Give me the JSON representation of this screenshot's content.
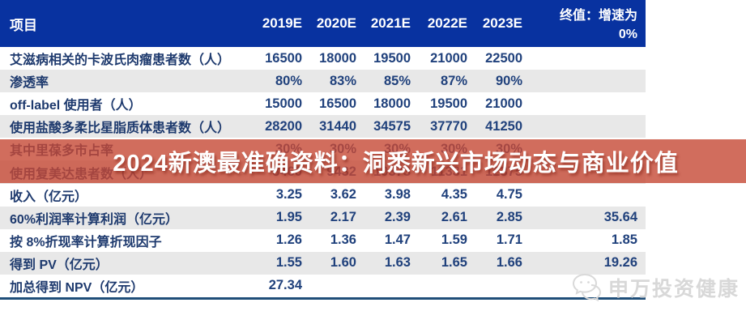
{
  "table": {
    "header": {
      "project": "项目",
      "years": [
        "2019E",
        "2020E",
        "2021E",
        "2022E",
        "2023E"
      ],
      "terminal_line1": "终值：增速为",
      "terminal_line2": "0%"
    },
    "rows": [
      {
        "label": "艾滋病相关的卡波氏肉瘤患者数（人）",
        "values": [
          "16500",
          "18000",
          "19500",
          "21000",
          "22500"
        ],
        "terminal": ""
      },
      {
        "label": "渗透率",
        "values": [
          "80%",
          "83%",
          "85%",
          "87%",
          "90%"
        ],
        "terminal": ""
      },
      {
        "label": "off-label 使用者（人）",
        "values": [
          "15000",
          "16500",
          "18000",
          "19500",
          "21000"
        ],
        "terminal": ""
      },
      {
        "label": "使用盐酸多柔比星脂质体患者数（人）",
        "values": [
          "28200",
          "31440",
          "34575",
          "37770",
          "41250"
        ],
        "terminal": ""
      },
      {
        "label": "其中里葆多市占率",
        "values": [
          "30%",
          "30%",
          "30%",
          "30%",
          "30%"
        ],
        "terminal": ""
      },
      {
        "label": "使用复美达患者数（人）",
        "values": [
          "8460",
          "9432",
          "10373",
          "11331",
          "12375"
        ],
        "terminal": ""
      },
      {
        "label": "收入（亿元）",
        "values": [
          "3.25",
          "3.62",
          "3.98",
          "4.35",
          "4.75"
        ],
        "terminal": ""
      },
      {
        "label": "60%利润率计算利润（亿元）",
        "values": [
          "1.95",
          "2.17",
          "2.39",
          "2.61",
          "2.85"
        ],
        "terminal": "35.64"
      },
      {
        "label": "按 8%折现率计算折现因子",
        "values": [
          "1.26",
          "1.36",
          "1.47",
          "1.59",
          "1.71"
        ],
        "terminal": "1.85"
      },
      {
        "label": "得到 PV（亿元）",
        "values": [
          "1.55",
          "1.60",
          "1.63",
          "1.65",
          "1.66"
        ],
        "terminal": "19.26"
      },
      {
        "label": "加总得到 NPV（亿元）",
        "values": [
          "27.34",
          "",
          "",
          "",
          ""
        ],
        "terminal": ""
      }
    ]
  },
  "overlay": {
    "text": "2024新澳最准确资料：洞悉新兴市场动态与商业价值"
  },
  "watermark": {
    "icon": "wechat-icon",
    "label": "申万投资健康"
  },
  "colors": {
    "header_bg": "#0832a0",
    "row_stripe": "#e8e8e8",
    "text_navy": "#20417c",
    "overlay_red": "#c64935",
    "bottom_rule": "#1f4e79",
    "watermark_gray": "#d8d8d8"
  }
}
